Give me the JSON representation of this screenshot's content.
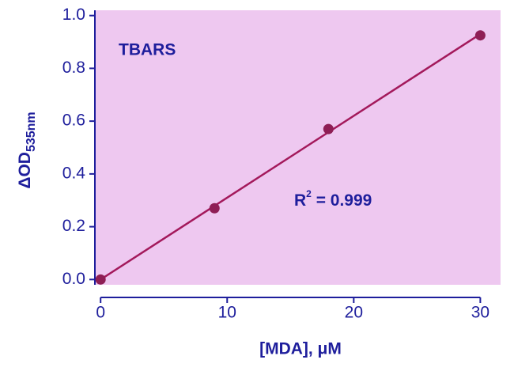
{
  "chart_data": {
    "type": "scatter",
    "title": "TBARS",
    "annotation": {
      "base": "R",
      "sup": "2",
      "rest": " = 0.999"
    },
    "x_label": "[MDA], μM",
    "y_label": {
      "base": "ΔOD",
      "sub": "535nm"
    },
    "series": [
      {
        "name": "TBARS",
        "color": "#8e1e55",
        "x": [
          0,
          9,
          18,
          30
        ],
        "values": [
          0.0,
          0.27,
          0.57,
          0.925
        ]
      }
    ],
    "fit": {
      "color": "#a3195b",
      "x": [
        0,
        30
      ],
      "values": [
        0.0,
        0.93
      ]
    },
    "xlim": [
      -0.45,
      31.6
    ],
    "ylim": [
      -0.02,
      1.02
    ],
    "xticks": [
      0,
      10,
      20,
      30
    ],
    "yticks": [
      {
        "value": 0,
        "label": "0.0"
      },
      {
        "value": 0.2,
        "label": "0.2"
      },
      {
        "value": 0.4,
        "label": "0.4"
      },
      {
        "value": 0.6,
        "label": "0.6"
      },
      {
        "value": 0.8,
        "label": "0.8"
      },
      {
        "value": 1,
        "label": "1.0"
      }
    ],
    "background": "#eec8f0"
  }
}
